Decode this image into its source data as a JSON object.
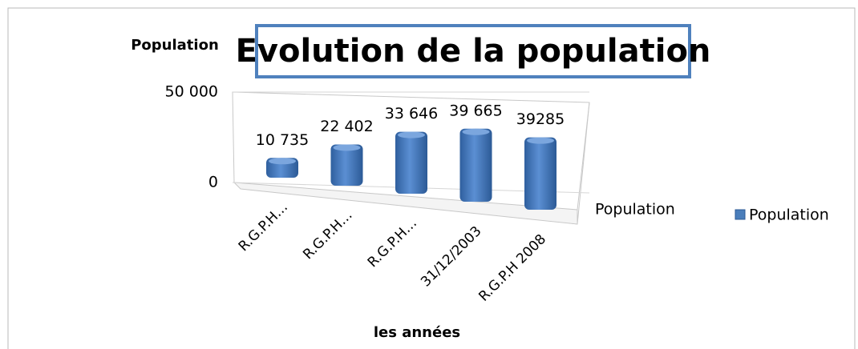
{
  "chart_data": {
    "type": "bar3d",
    "title": "Evolution de la population",
    "y_axis_label": "Population",
    "x_axis_label": "les années",
    "categories": [
      "R.G.P.H…",
      "R.G.P.H…",
      "R.G.P.H…",
      "31/12/2003",
      "R.G.P.H 2008"
    ],
    "series": [
      {
        "name": "Population",
        "color": "#4a7ebb",
        "values": [
          10735,
          22402,
          33646,
          39665,
          39285
        ],
        "value_labels": [
          "10 735",
          "22 402",
          "33 646",
          "39 665",
          "39285"
        ]
      }
    ],
    "ylim": [
      0,
      50000
    ],
    "yticks": [
      0,
      {
        "value": 50000,
        "label": "50 000"
      }
    ],
    "legend": "right"
  }
}
